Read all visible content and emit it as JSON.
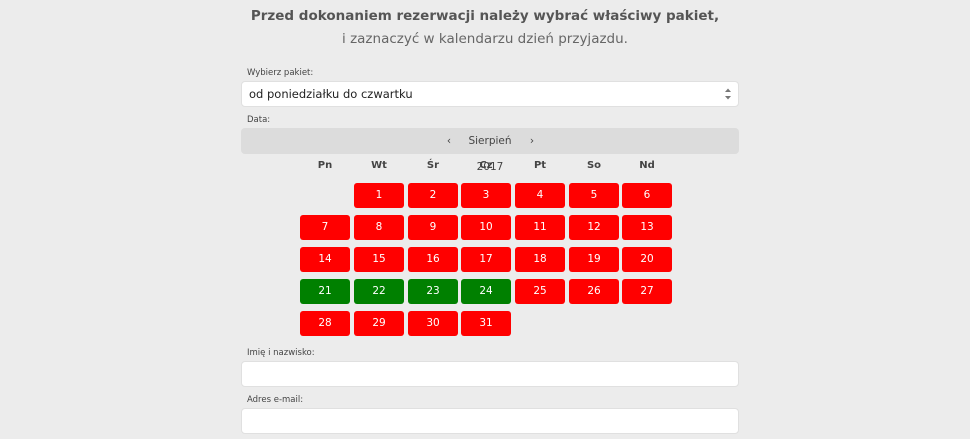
{
  "intro": {
    "line1": "Przed dokonaniem rezerwacji należy wybrać właściwy pakiet,",
    "line2": "i zaznaczyć w kalendarzu dzień przyjazdu."
  },
  "package": {
    "label": "Wybierz pakiet:",
    "value": "od poniedziałku do czwartku"
  },
  "date": {
    "label": "Data:",
    "prev": "‹",
    "next": "›",
    "month_title": "Sierpień 2017",
    "weekdays": [
      "Pn",
      "Wt",
      "Śr",
      "Cz",
      "Pt",
      "So",
      "Nd"
    ],
    "first_weekday_index": 1,
    "days": [
      {
        "n": "1",
        "status": "red"
      },
      {
        "n": "2",
        "status": "red"
      },
      {
        "n": "3",
        "status": "red"
      },
      {
        "n": "4",
        "status": "red"
      },
      {
        "n": "5",
        "status": "red"
      },
      {
        "n": "6",
        "status": "red"
      },
      {
        "n": "7",
        "status": "red"
      },
      {
        "n": "8",
        "status": "red"
      },
      {
        "n": "9",
        "status": "red"
      },
      {
        "n": "10",
        "status": "red"
      },
      {
        "n": "11",
        "status": "red"
      },
      {
        "n": "12",
        "status": "red"
      },
      {
        "n": "13",
        "status": "red"
      },
      {
        "n": "14",
        "status": "red"
      },
      {
        "n": "15",
        "status": "red"
      },
      {
        "n": "16",
        "status": "red"
      },
      {
        "n": "17",
        "status": "red"
      },
      {
        "n": "18",
        "status": "red"
      },
      {
        "n": "19",
        "status": "red"
      },
      {
        "n": "20",
        "status": "red"
      },
      {
        "n": "21",
        "status": "green"
      },
      {
        "n": "22",
        "status": "green"
      },
      {
        "n": "23",
        "status": "green"
      },
      {
        "n": "24",
        "status": "green"
      },
      {
        "n": "25",
        "status": "red"
      },
      {
        "n": "26",
        "status": "red"
      },
      {
        "n": "27",
        "status": "red"
      },
      {
        "n": "28",
        "status": "red"
      },
      {
        "n": "29",
        "status": "red"
      },
      {
        "n": "30",
        "status": "red"
      },
      {
        "n": "31",
        "status": "red"
      }
    ],
    "colors": {
      "unavailable": "#ff0000",
      "available": "#008000"
    }
  },
  "name_field": {
    "label": "Imię i nazwisko:",
    "value": ""
  },
  "email_field": {
    "label": "Adres e-mail:",
    "value": ""
  }
}
